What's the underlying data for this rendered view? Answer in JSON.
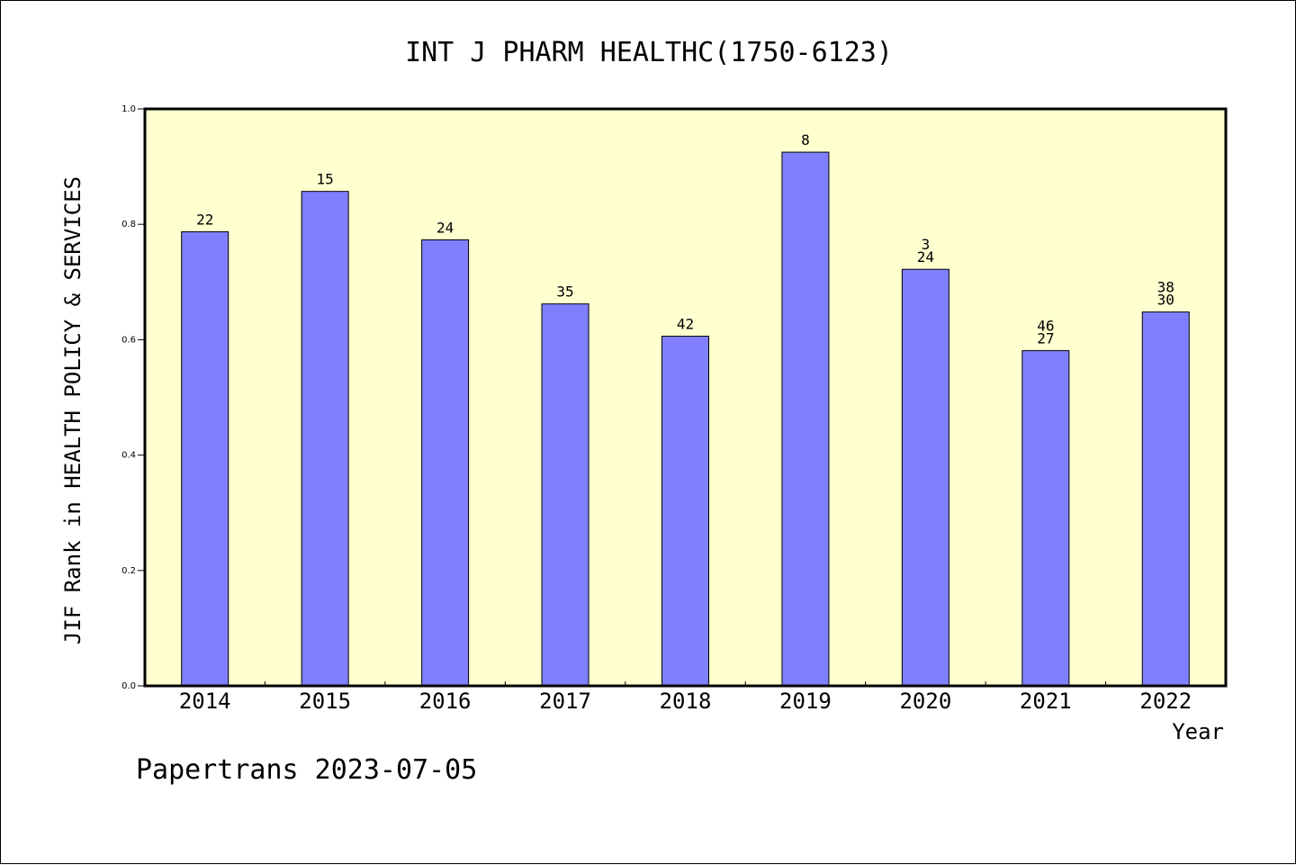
{
  "chart_data": {
    "type": "bar",
    "title": "INT J PHARM HEALTHC(1750-6123)",
    "xlabel": "Year",
    "ylabel": "JIF Rank in HEALTH POLICY & SERVICES",
    "ylim": [
      0,
      1.0
    ],
    "yticks": [
      "0.0",
      "0.2",
      "0.4",
      "0.6",
      "0.8",
      "1.0"
    ],
    "categories": [
      "2014",
      "2015",
      "2016",
      "2017",
      "2018",
      "2019",
      "2020",
      "2021",
      "2022"
    ],
    "values": [
      0.787,
      0.857,
      0.773,
      0.662,
      0.606,
      0.925,
      0.722,
      0.581,
      0.648
    ],
    "bar_labels": [
      [
        "22"
      ],
      [
        "15"
      ],
      [
        "24"
      ],
      [
        "35"
      ],
      [
        "42"
      ],
      [
        "8"
      ],
      [
        "3",
        "24"
      ],
      [
        "46",
        "27"
      ],
      [
        "38",
        "30"
      ]
    ],
    "grid": false,
    "plot_background": "#ffffd0",
    "bar_color": "#8080ff"
  },
  "footer": "Papertrans 2023-07-05"
}
